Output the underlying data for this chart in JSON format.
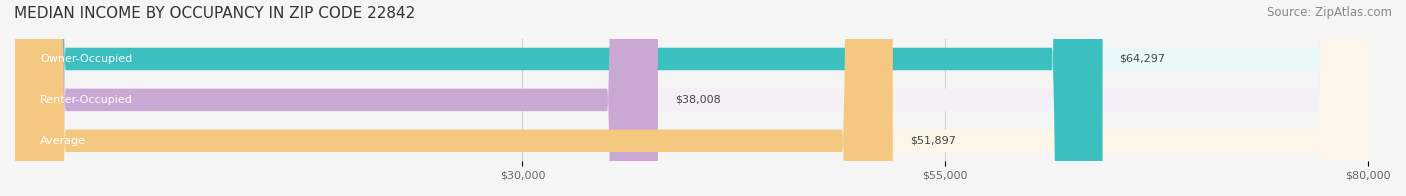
{
  "title": "MEDIAN INCOME BY OCCUPANCY IN ZIP CODE 22842",
  "source": "Source: ZipAtlas.com",
  "categories": [
    "Owner-Occupied",
    "Renter-Occupied",
    "Average"
  ],
  "values": [
    64297,
    38008,
    51897
  ],
  "bar_colors": [
    "#3bbfbf",
    "#c9a8d4",
    "#f5c882"
  ],
  "bar_bg_colors": [
    "#e8f8f8",
    "#f5f0f8",
    "#fdf5e8"
  ],
  "label_colors": [
    "#ffffff",
    "#555555",
    "#555555"
  ],
  "value_labels": [
    "$64,297",
    "$38,008",
    "$51,897"
  ],
  "tick_labels": [
    "$30,000",
    "$55,000",
    "$80,000"
  ],
  "tick_values": [
    30000,
    55000,
    80000
  ],
  "xlim": [
    0,
    80000
  ],
  "bar_height": 0.55,
  "figsize": [
    14.06,
    1.96
  ],
  "dpi": 100,
  "title_fontsize": 11,
  "source_fontsize": 8.5,
  "bar_label_fontsize": 8,
  "tick_fontsize": 8,
  "background_color": "#f5f5f5"
}
